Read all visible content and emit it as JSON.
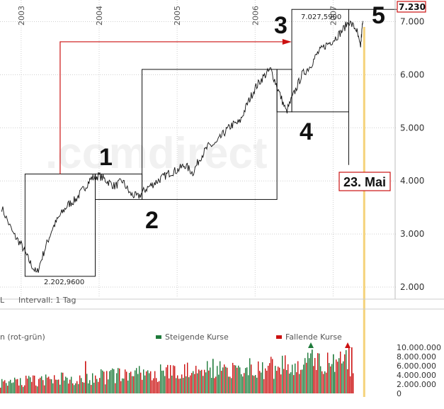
{
  "chart_data": {
    "type": "line",
    "price": {
      "x": [
        2002.75,
        2002.9,
        2003.0,
        2003.1,
        2003.2,
        2003.3,
        2003.4,
        2003.5,
        2003.6,
        2003.7,
        2003.8,
        2003.9,
        2004.0,
        2004.1,
        2004.2,
        2004.3,
        2004.4,
        2004.5,
        2004.6,
        2004.7,
        2004.8,
        2004.9,
        2005.0,
        2005.1,
        2005.2,
        2005.3,
        2005.4,
        2005.5,
        2005.6,
        2005.7,
        2005.8,
        2005.9,
        2006.0,
        2006.1,
        2006.2,
        2006.3,
        2006.4,
        2006.5,
        2006.6,
        2006.7,
        2006.8,
        2006.9,
        2007.0,
        2007.1,
        2007.2,
        2007.3,
        2007.35,
        2007.38
      ],
      "y": [
        3500,
        3000,
        2800,
        2500,
        2250,
        2700,
        3100,
        3350,
        3550,
        3650,
        3850,
        4050,
        4100,
        4000,
        3900,
        4000,
        3750,
        3700,
        3850,
        3950,
        4050,
        4150,
        4200,
        4300,
        4150,
        4450,
        4650,
        4700,
        4900,
        5050,
        5100,
        5450,
        5750,
        5950,
        6100,
        5700,
        5300,
        5650,
        6000,
        6150,
        6400,
        6550,
        6650,
        6800,
        7000,
        6850,
        6500,
        7010
      ]
    },
    "volume": {
      "legend": [
        "Steigende Kurse",
        "Fallende Kurse"
      ],
      "colors": {
        "rising": "#1e7a3a",
        "falling": "#cc1111"
      },
      "yticks": [
        "10.000.000",
        "8.000.000",
        "6.000.000",
        "4.000.000",
        "2.000.000",
        "0"
      ]
    },
    "xlim": [
      2002.62,
      2007.45
    ],
    "ylim": [
      1800,
      7300
    ],
    "yticks": [
      {
        "v": 7000,
        "label": "7.000"
      },
      {
        "v": 6000,
        "label": "6.000"
      },
      {
        "v": 5000,
        "label": "5.000"
      },
      {
        "v": 4000,
        "label": "4.000"
      },
      {
        "v": 3000,
        "label": "3.000"
      },
      {
        "v": 2000,
        "label": "2.000"
      }
    ],
    "xticks": [
      {
        "v": 2003,
        "label": "2003"
      },
      {
        "v": 2004,
        "label": "2004"
      },
      {
        "v": 2005,
        "label": "2005"
      },
      {
        "v": 2006,
        "label": "2006"
      },
      {
        "v": 2007,
        "label": "2007"
      }
    ],
    "annotations": {
      "waves": [
        "1",
        "2",
        "3",
        "4",
        "5"
      ],
      "low_label": "2.202,9600",
      "high_label": "7.027,5900",
      "target_label": "7.230",
      "date_label": "23. Mai"
    },
    "footer_left": "L",
    "footer_interval": "Intervall: 1 Tag",
    "volume_caption": "n (rot-grün)",
    "watermark": ".comdirect"
  }
}
